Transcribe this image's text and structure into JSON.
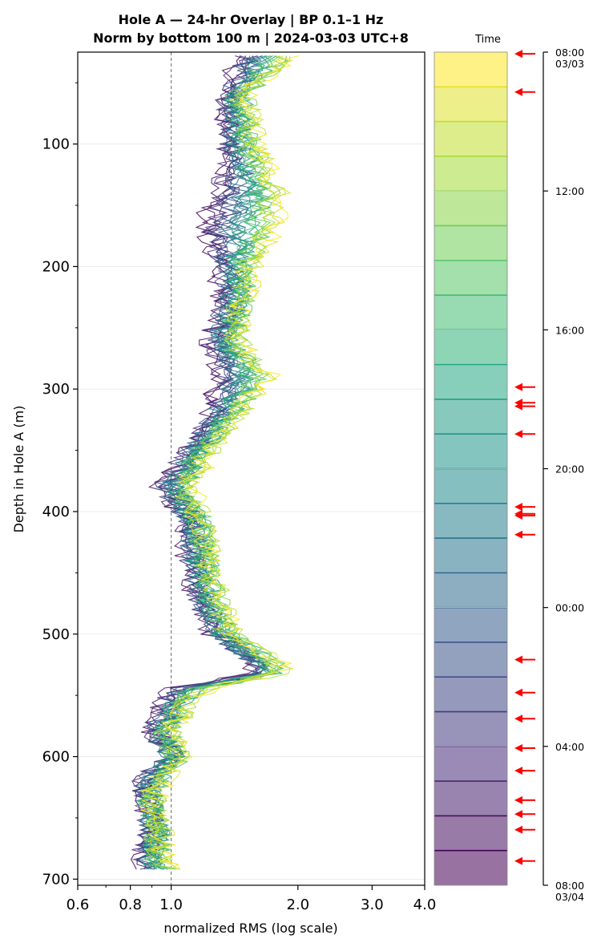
{
  "chart_data": {
    "type": "line",
    "title": "Hole A — 24-hr Overlay  |  BP 0.1–1 Hz",
    "subtitle": "Norm by bottom 100 m  |  2024-03-03 UTC+8",
    "xlabel": "normalized RMS  (log scale)",
    "ylabel": "Depth in Hole A (m)",
    "xscale": "log",
    "xlim": [
      0.6,
      4.0
    ],
    "ylim": [
      705,
      25
    ],
    "x_ticks": [
      "0.6",
      "0.8",
      "1.0",
      "2.0",
      "3.0",
      "4.0"
    ],
    "y_ticks": [
      "100",
      "200",
      "300",
      "400",
      "500",
      "600",
      "700"
    ],
    "reference_line": {
      "x": 1.0,
      "style": "dashed"
    },
    "grid": "horizontal",
    "series_count": 24,
    "profile_depths": [
      30,
      60,
      100,
      140,
      170,
      200,
      230,
      260,
      290,
      320,
      350,
      380,
      410,
      440,
      470,
      500,
      530,
      545,
      560,
      580,
      600,
      620,
      640,
      660,
      680,
      695
    ],
    "profile_start": [
      1.9,
      1.5,
      1.6,
      1.8,
      1.75,
      1.55,
      1.5,
      1.45,
      1.7,
      1.45,
      1.25,
      1.1,
      1.2,
      1.25,
      1.3,
      1.4,
      1.9,
      1.2,
      1.1,
      1.0,
      1.05,
      0.95,
      0.9,
      0.95,
      0.95,
      1.0
    ],
    "profile_end": [
      1.45,
      1.35,
      1.35,
      1.3,
      1.2,
      1.3,
      1.35,
      1.25,
      1.3,
      1.25,
      1.1,
      0.95,
      1.1,
      1.1,
      1.15,
      1.25,
      1.6,
      1.0,
      0.95,
      0.9,
      1.0,
      0.85,
      0.88,
      0.9,
      0.85,
      0.88
    ],
    "colorbar": {
      "label": "Time",
      "colormap": "viridis",
      "ticks": [
        {
          "label": "08:00",
          "sublabel": "03/03",
          "hour": 0
        },
        {
          "label": "12:00",
          "sublabel": "",
          "hour": 4
        },
        {
          "label": "16:00",
          "sublabel": "",
          "hour": 8
        },
        {
          "label": "20:00",
          "sublabel": "",
          "hour": 12
        },
        {
          "label": "00:00",
          "sublabel": "",
          "hour": 16
        },
        {
          "label": "04:00",
          "sublabel": "",
          "hour": 20
        },
        {
          "label": "08:00",
          "sublabel": "03/04",
          "hour": 24
        }
      ],
      "arrow_hours": [
        0.05,
        1.15,
        9.65,
        10.1,
        10.2,
        11.0,
        13.1,
        13.3,
        13.35,
        13.9,
        17.5,
        18.45,
        19.2,
        20.05,
        20.7,
        21.55,
        21.95,
        22.4,
        23.3
      ],
      "arrow_color": "#ff0000"
    }
  }
}
